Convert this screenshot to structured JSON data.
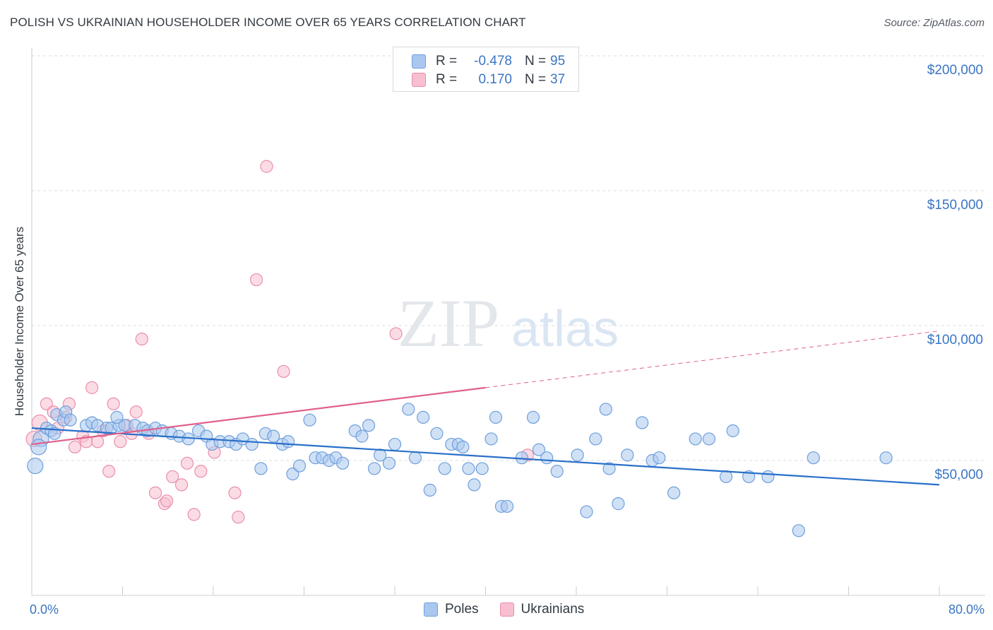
{
  "title": "POLISH VS UKRAINIAN HOUSEHOLDER INCOME OVER 65 YEARS CORRELATION CHART",
  "source": "Source: ZipAtlas.com",
  "watermark": {
    "zip": "ZIP",
    "atlas": "atlas"
  },
  "legend": {
    "rows": [
      {
        "r_label": "R =",
        "r_value": "-0.478",
        "n_label": "N =",
        "n_value": "95"
      },
      {
        "r_label": "R =",
        "r_value": "0.170",
        "n_label": "N =",
        "n_value": "37"
      }
    ]
  },
  "colors": {
    "poles_fill": "#aac8ef",
    "poles_stroke": "#6f9fdc",
    "poles_line": "#2a6fc9",
    "ukr_fill": "#f7bfd0",
    "ukr_stroke": "#ea8eab",
    "ukr_line": "#e0608c",
    "tick_text": "#3a75c4",
    "grid": "#d8dce0"
  },
  "chart_data": {
    "type": "scatter",
    "title": "POLISH VS UKRAINIAN HOUSEHOLDER INCOME OVER 65 YEARS CORRELATION CHART",
    "xlabel": "",
    "ylabel": "Householder Income Over 65 years",
    "xlim": [
      0,
      80
    ],
    "ylim": [
      5000,
      205000
    ],
    "x_tick_labels": [
      "0.0%",
      "80.0%"
    ],
    "y_ticks": [
      50000,
      100000,
      150000,
      200000
    ],
    "y_tick_labels": [
      "$50,000",
      "$100,000",
      "$150,000",
      "$200,000"
    ],
    "grid": true,
    "legend_position": "bottom-center",
    "series": [
      {
        "name": "Poles",
        "r": -0.478,
        "n": 95,
        "trend": {
          "x": [
            0,
            80
          ],
          "y": [
            62000,
            41000
          ],
          "dashed_from": null
        },
        "points": [
          [
            0.3,
            48000
          ],
          [
            0.8,
            58000
          ],
          [
            1.3,
            62000
          ],
          [
            1.7,
            61000
          ],
          [
            2.2,
            67000
          ],
          [
            2.8,
            65000
          ],
          [
            3.0,
            68000
          ],
          [
            3.4,
            65000
          ],
          [
            4.8,
            63000
          ],
          [
            5.3,
            64000
          ],
          [
            5.8,
            63000
          ],
          [
            6.6,
            62000
          ],
          [
            7.0,
            62000
          ],
          [
            7.7,
            63000
          ],
          [
            8.2,
            63000
          ],
          [
            9.1,
            63000
          ],
          [
            9.8,
            62000
          ],
          [
            10.2,
            61000
          ],
          [
            10.9,
            62000
          ],
          [
            11.5,
            61000
          ],
          [
            12.3,
            60000
          ],
          [
            13.0,
            59000
          ],
          [
            13.8,
            58000
          ],
          [
            14.7,
            61000
          ],
          [
            15.4,
            59000
          ],
          [
            15.9,
            56000
          ],
          [
            16.6,
            57000
          ],
          [
            17.4,
            57000
          ],
          [
            18.0,
            56000
          ],
          [
            18.6,
            58000
          ],
          [
            19.4,
            56000
          ],
          [
            20.2,
            47000
          ],
          [
            20.6,
            60000
          ],
          [
            21.3,
            59000
          ],
          [
            22.1,
            56000
          ],
          [
            22.6,
            57000
          ],
          [
            23.0,
            45000
          ],
          [
            23.6,
            48000
          ],
          [
            24.5,
            65000
          ],
          [
            25.0,
            51000
          ],
          [
            25.6,
            51000
          ],
          [
            26.2,
            50000
          ],
          [
            26.8,
            51000
          ],
          [
            27.4,
            49000
          ],
          [
            28.5,
            61000
          ],
          [
            29.1,
            59000
          ],
          [
            29.7,
            63000
          ],
          [
            30.2,
            47000
          ],
          [
            30.7,
            52000
          ],
          [
            31.5,
            49000
          ],
          [
            32.0,
            56000
          ],
          [
            33.2,
            69000
          ],
          [
            33.8,
            51000
          ],
          [
            34.5,
            66000
          ],
          [
            35.1,
            39000
          ],
          [
            35.7,
            60000
          ],
          [
            36.4,
            47000
          ],
          [
            37.0,
            56000
          ],
          [
            37.6,
            56000
          ],
          [
            38.0,
            55000
          ],
          [
            38.5,
            47000
          ],
          [
            39.0,
            41000
          ],
          [
            39.7,
            47000
          ],
          [
            40.5,
            58000
          ],
          [
            40.9,
            66000
          ],
          [
            41.4,
            33000
          ],
          [
            41.9,
            33000
          ],
          [
            43.2,
            51000
          ],
          [
            44.2,
            66000
          ],
          [
            44.7,
            54000
          ],
          [
            45.4,
            51000
          ],
          [
            46.3,
            46000
          ],
          [
            48.1,
            52000
          ],
          [
            48.9,
            31000
          ],
          [
            49.7,
            58000
          ],
          [
            50.6,
            69000
          ],
          [
            50.9,
            47000
          ],
          [
            51.7,
            34000
          ],
          [
            52.5,
            52000
          ],
          [
            53.8,
            64000
          ],
          [
            54.7,
            50000
          ],
          [
            55.3,
            51000
          ],
          [
            56.6,
            38000
          ],
          [
            58.5,
            58000
          ],
          [
            59.7,
            58000
          ],
          [
            61.2,
            44000
          ],
          [
            61.8,
            61000
          ],
          [
            63.2,
            44000
          ],
          [
            64.9,
            44000
          ],
          [
            68.9,
            51000
          ],
          [
            67.6,
            24000
          ],
          [
            75.3,
            51000
          ],
          [
            2.0,
            60000
          ],
          [
            0.6,
            55000
          ],
          [
            7.5,
            66000
          ]
        ]
      },
      {
        "name": "Ukrainians",
        "r": 0.17,
        "n": 37,
        "trend": {
          "x": [
            0,
            80
          ],
          "y": [
            56000,
            98000
          ],
          "dashed_from": 40
        },
        "points": [
          [
            0.2,
            58000
          ],
          [
            0.7,
            64000
          ],
          [
            1.3,
            71000
          ],
          [
            1.9,
            68000
          ],
          [
            2.3,
            62000
          ],
          [
            3.0,
            66000
          ],
          [
            3.3,
            71000
          ],
          [
            3.8,
            55000
          ],
          [
            4.5,
            59000
          ],
          [
            4.8,
            57000
          ],
          [
            5.3,
            77000
          ],
          [
            5.8,
            57000
          ],
          [
            6.3,
            61000
          ],
          [
            6.8,
            46000
          ],
          [
            7.2,
            71000
          ],
          [
            7.8,
            57000
          ],
          [
            8.4,
            63000
          ],
          [
            8.8,
            60000
          ],
          [
            9.2,
            68000
          ],
          [
            9.7,
            95000
          ],
          [
            10.3,
            60000
          ],
          [
            10.9,
            38000
          ],
          [
            11.7,
            34000
          ],
          [
            11.9,
            35000
          ],
          [
            12.4,
            44000
          ],
          [
            13.2,
            41000
          ],
          [
            13.7,
            49000
          ],
          [
            14.3,
            30000
          ],
          [
            14.9,
            46000
          ],
          [
            16.1,
            53000
          ],
          [
            17.9,
            38000
          ],
          [
            18.2,
            29000
          ],
          [
            19.8,
            117000
          ],
          [
            20.7,
            159000
          ],
          [
            22.2,
            83000
          ],
          [
            32.1,
            97000
          ],
          [
            43.7,
            52000
          ]
        ]
      }
    ]
  }
}
